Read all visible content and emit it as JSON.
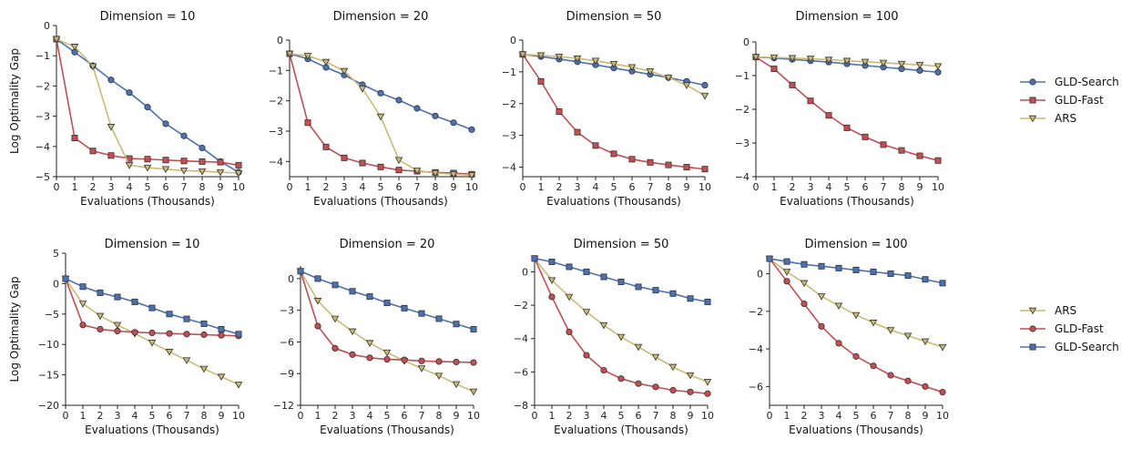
{
  "colors": {
    "GLD-Search": "#4c72b0",
    "GLD-Fast": "#c44e52",
    "ARS": "#ccb974"
  },
  "legends": [
    [
      "GLD-Search",
      "GLD-Fast",
      "ARS"
    ],
    [
      "ARS",
      "GLD-Fast",
      "GLD-Search"
    ]
  ],
  "chart_data": [
    {
      "type": "line",
      "title": "Dimension = 10",
      "xlabel": "Evaluations (Thousands)",
      "ylabel": "Log Optimality Gap",
      "x": [
        0,
        1,
        2,
        3,
        4,
        5,
        6,
        7,
        8,
        9,
        10
      ],
      "xlim": [
        0,
        10
      ],
      "ylim": [
        -5,
        0
      ],
      "yticks": [
        0,
        -1,
        -2,
        -3,
        -4,
        -5
      ],
      "series": [
        {
          "name": "GLD-Search",
          "values": [
            -0.45,
            -0.88,
            -1.33,
            -1.8,
            -2.22,
            -2.7,
            -3.25,
            -3.65,
            -4.05,
            -4.5,
            -4.85
          ]
        },
        {
          "name": "GLD-Fast",
          "values": [
            -0.45,
            -3.72,
            -4.15,
            -4.3,
            -4.4,
            -4.42,
            -4.45,
            -4.48,
            -4.5,
            -4.52,
            -4.62
          ]
        },
        {
          "name": "ARS",
          "values": [
            -0.45,
            -0.7,
            -1.35,
            -3.35,
            -4.62,
            -4.7,
            -4.75,
            -4.8,
            -4.82,
            -4.85,
            -4.88
          ]
        }
      ]
    },
    {
      "type": "line",
      "title": "Dimension = 20",
      "xlabel": "Evaluations (Thousands)",
      "ylabel": "",
      "x": [
        0,
        1,
        2,
        3,
        4,
        5,
        6,
        7,
        8,
        9,
        10
      ],
      "xlim": [
        0,
        10
      ],
      "ylim": [
        -4.5,
        0
      ],
      "yticks": [
        0,
        -1,
        -2,
        -3,
        -4
      ],
      "series": [
        {
          "name": "GLD-Search",
          "values": [
            -0.45,
            -0.62,
            -0.9,
            -1.15,
            -1.47,
            -1.75,
            -1.98,
            -2.25,
            -2.5,
            -2.72,
            -2.95
          ]
        },
        {
          "name": "GLD-Fast",
          "values": [
            -0.45,
            -2.72,
            -3.52,
            -3.88,
            -4.05,
            -4.18,
            -4.28,
            -4.32,
            -4.36,
            -4.38,
            -4.42
          ]
        },
        {
          "name": "ARS",
          "values": [
            -0.45,
            -0.52,
            -0.72,
            -1.02,
            -1.6,
            -2.52,
            -3.95,
            -4.3,
            -4.38,
            -4.42,
            -4.45
          ]
        }
      ]
    },
    {
      "type": "line",
      "title": "Dimension = 50",
      "xlabel": "Evaluations (Thousands)",
      "ylabel": "",
      "x": [
        0,
        1,
        2,
        3,
        4,
        5,
        6,
        7,
        8,
        9,
        10
      ],
      "xlim": [
        0,
        10
      ],
      "ylim": [
        -4.3,
        0
      ],
      "yticks": [
        0,
        -1,
        -2,
        -3,
        -4
      ],
      "series": [
        {
          "name": "GLD-Search",
          "values": [
            -0.45,
            -0.52,
            -0.6,
            -0.68,
            -0.78,
            -0.88,
            -0.98,
            -1.08,
            -1.18,
            -1.3,
            -1.42
          ]
        },
        {
          "name": "GLD-Fast",
          "values": [
            -0.45,
            -1.3,
            -2.25,
            -2.9,
            -3.32,
            -3.58,
            -3.75,
            -3.85,
            -3.93,
            -4.0,
            -4.06
          ]
        },
        {
          "name": "ARS",
          "values": [
            -0.45,
            -0.48,
            -0.52,
            -0.58,
            -0.65,
            -0.75,
            -0.85,
            -0.98,
            -1.18,
            -1.42,
            -1.75
          ]
        }
      ]
    },
    {
      "type": "line",
      "title": "Dimension = 100",
      "xlabel": "Evaluations (Thousands)",
      "ylabel": "",
      "x": [
        0,
        1,
        2,
        3,
        4,
        5,
        6,
        7,
        8,
        9,
        10
      ],
      "xlim": [
        0,
        10
      ],
      "ylim": [
        -4,
        0
      ],
      "yticks": [
        0,
        -1,
        -2,
        -3,
        -4
      ],
      "series": [
        {
          "name": "GLD-Search",
          "values": [
            -0.45,
            -0.48,
            -0.52,
            -0.56,
            -0.6,
            -0.65,
            -0.7,
            -0.75,
            -0.8,
            -0.85,
            -0.9
          ]
        },
        {
          "name": "GLD-Fast",
          "values": [
            -0.45,
            -0.8,
            -1.28,
            -1.75,
            -2.18,
            -2.55,
            -2.82,
            -3.05,
            -3.22,
            -3.38,
            -3.52
          ]
        },
        {
          "name": "ARS",
          "values": [
            -0.45,
            -0.46,
            -0.48,
            -0.5,
            -0.53,
            -0.56,
            -0.59,
            -0.62,
            -0.65,
            -0.68,
            -0.72
          ]
        }
      ]
    },
    {
      "type": "line",
      "title": "Dimension = 10",
      "xlabel": "Evaluations (Thousands)",
      "ylabel": "Log Optimality Gap",
      "x": [
        0,
        1,
        2,
        3,
        4,
        5,
        6,
        7,
        8,
        9,
        10
      ],
      "xlim": [
        0,
        10
      ],
      "ylim": [
        -20,
        5
      ],
      "yticks": [
        5,
        0,
        -5,
        -10,
        -15,
        -20
      ],
      "series": [
        {
          "name": "ARS",
          "values": [
            0.8,
            -3.3,
            -5.3,
            -6.8,
            -8.2,
            -9.7,
            -11.2,
            -12.6,
            -14.0,
            -15.3,
            -16.6
          ]
        },
        {
          "name": "GLD-Fast",
          "values": [
            0.8,
            -6.8,
            -7.5,
            -7.8,
            -8.0,
            -8.1,
            -8.2,
            -8.3,
            -8.4,
            -8.5,
            -8.6
          ]
        },
        {
          "name": "GLD-Search",
          "values": [
            0.8,
            -0.5,
            -1.5,
            -2.2,
            -3.0,
            -4.0,
            -5.0,
            -5.8,
            -6.6,
            -7.5,
            -8.3
          ]
        }
      ]
    },
    {
      "type": "line",
      "title": "Dimension = 20",
      "xlabel": "Evaluations (Thousands)",
      "ylabel": "",
      "x": [
        0,
        1,
        2,
        3,
        4,
        5,
        6,
        7,
        8,
        9,
        10
      ],
      "xlim": [
        0,
        10
      ],
      "ylim": [
        -12,
        1.2
      ],
      "yticks": [
        0,
        -3,
        -6,
        -9,
        -12
      ],
      "series": [
        {
          "name": "ARS",
          "values": [
            0.7,
            -2.1,
            -3.8,
            -5.0,
            -6.1,
            -7.0,
            -7.8,
            -8.5,
            -9.2,
            -10.0,
            -10.7
          ]
        },
        {
          "name": "GLD-Fast",
          "values": [
            0.7,
            -4.5,
            -6.6,
            -7.2,
            -7.5,
            -7.65,
            -7.7,
            -7.8,
            -7.85,
            -7.9,
            -7.95
          ]
        },
        {
          "name": "GLD-Search",
          "values": [
            0.7,
            0.0,
            -0.6,
            -1.2,
            -1.7,
            -2.3,
            -2.8,
            -3.3,
            -3.8,
            -4.3,
            -4.8
          ]
        }
      ]
    },
    {
      "type": "line",
      "title": "Dimension = 50",
      "xlabel": "Evaluations (Thousands)",
      "ylabel": "",
      "x": [
        0,
        1,
        2,
        3,
        4,
        5,
        6,
        7,
        8,
        9,
        10
      ],
      "xlim": [
        0,
        10
      ],
      "ylim": [
        -8,
        0.9
      ],
      "yticks": [
        0,
        -2,
        -4,
        -6,
        -8
      ],
      "series": [
        {
          "name": "ARS",
          "values": [
            0.8,
            -0.5,
            -1.5,
            -2.4,
            -3.2,
            -3.9,
            -4.5,
            -5.1,
            -5.7,
            -6.2,
            -6.6
          ]
        },
        {
          "name": "GLD-Fast",
          "values": [
            0.8,
            -1.5,
            -3.6,
            -5.0,
            -5.9,
            -6.4,
            -6.7,
            -6.9,
            -7.1,
            -7.2,
            -7.3
          ]
        },
        {
          "name": "GLD-Search",
          "values": [
            0.8,
            0.6,
            0.3,
            0.0,
            -0.3,
            -0.6,
            -0.9,
            -1.1,
            -1.3,
            -1.6,
            -1.8
          ]
        }
      ]
    },
    {
      "type": "line",
      "title": "Dimension = 100",
      "xlabel": "Evaluations (Thousands)",
      "ylabel": "",
      "x": [
        0,
        1,
        2,
        3,
        4,
        5,
        6,
        7,
        8,
        9,
        10
      ],
      "xlim": [
        0,
        10
      ],
      "ylim": [
        -7,
        0.9
      ],
      "yticks": [
        0,
        -2,
        -4,
        -6
      ],
      "series": [
        {
          "name": "ARS",
          "values": [
            0.8,
            0.1,
            -0.5,
            -1.2,
            -1.7,
            -2.2,
            -2.6,
            -3.0,
            -3.3,
            -3.6,
            -3.9
          ]
        },
        {
          "name": "GLD-Fast",
          "values": [
            0.8,
            -0.4,
            -1.6,
            -2.8,
            -3.7,
            -4.4,
            -4.9,
            -5.4,
            -5.7,
            -6.0,
            -6.3
          ]
        },
        {
          "name": "GLD-Search",
          "values": [
            0.8,
            0.65,
            0.5,
            0.4,
            0.3,
            0.2,
            0.1,
            0.0,
            -0.1,
            -0.3,
            -0.5
          ]
        }
      ]
    }
  ]
}
